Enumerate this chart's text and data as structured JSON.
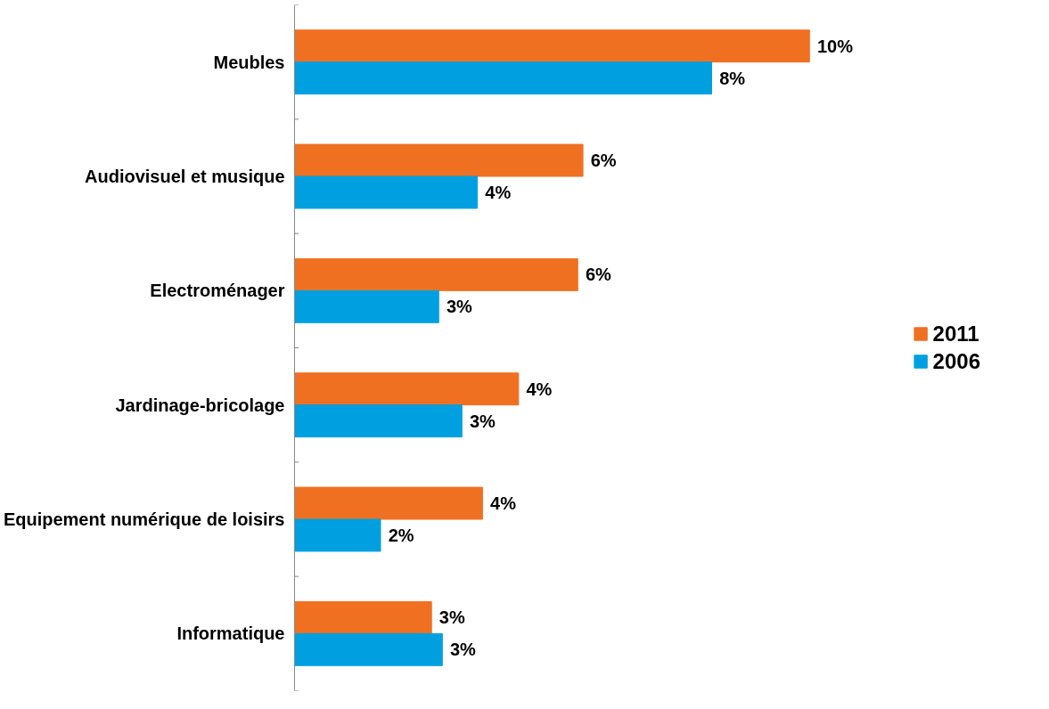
{
  "chart_data": {
    "type": "bar",
    "orientation": "horizontal",
    "categories": [
      "Meubles",
      "Audiovisuel et musique",
      "Electroménager",
      "Jardinage-bricolage",
      "Equipement numérique de loisirs",
      "Informatique"
    ],
    "series": [
      {
        "name": "2011",
        "color": "#f07022",
        "values": [
          10.0,
          5.6,
          5.5,
          4.35,
          3.65,
          2.66
        ],
        "value_labels": [
          "10%",
          "6%",
          "6%",
          "4%",
          "4%",
          "3%"
        ]
      },
      {
        "name": "2006",
        "color": "#00a0e0",
        "values": [
          8.1,
          3.55,
          2.8,
          3.25,
          1.67,
          2.87
        ],
        "value_labels": [
          "8%",
          "4%",
          "3%",
          "3%",
          "2%",
          "3%"
        ]
      }
    ],
    "legend": "right",
    "grid": false
  }
}
